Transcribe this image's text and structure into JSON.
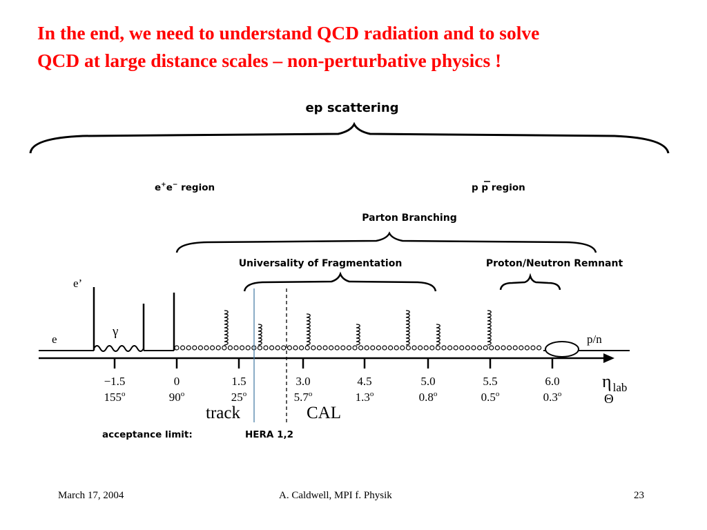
{
  "slide": {
    "title_line1": "In the end, we need to understand QCD radiation and to solve",
    "title_line2": "QCD at large distance scales – non-perturbative physics !",
    "title_color": "#ff0000"
  },
  "diagram": {
    "ep_scattering": "ep scattering",
    "ee_region_prefix": "e",
    "ee_region_sup1": "+",
    "ee_region_mid": "e",
    "ee_region_sup2": "−",
    "ee_region_suffix": " region",
    "pp_region_p": "p",
    "pp_region_pbar": "p",
    "pp_region_suffix": " region",
    "parton_branching": "Parton Branching",
    "universality": "Universality of Fragmentation",
    "remnant": "Proton/Neutron Remnant",
    "e_prime": "e’",
    "e": "e",
    "gamma": "γ",
    "pn": "p/n",
    "eta_symbol": "η",
    "eta_sub": "lab",
    "theta_symbol": "Θ",
    "ticks": [
      {
        "eta": "−1.5",
        "theta": "155",
        "deg": "o"
      },
      {
        "eta": "0",
        "theta": "90",
        "deg": "o"
      },
      {
        "eta": "1.5",
        "theta": "25",
        "deg": "o"
      },
      {
        "eta": "3.0",
        "theta": "5.7",
        "deg": "o"
      },
      {
        "eta": "4.5",
        "theta": "1.3",
        "deg": "o"
      },
      {
        "eta": "5.0",
        "theta": "0.8",
        "deg": "o"
      },
      {
        "eta": "5.5",
        "theta": "0.5",
        "deg": "o"
      },
      {
        "eta": "6.0",
        "theta": "0.3",
        "deg": "o"
      }
    ],
    "track_label": "track",
    "cal_label": "CAL",
    "acceptance_label": "acceptance limit:",
    "hera_label": "HERA 1,2",
    "track_line_color": "#4a7fa8"
  },
  "footer": {
    "date": "March 17, 2004",
    "author": "A. Caldwell, MPI f. Physik",
    "page": "23"
  }
}
